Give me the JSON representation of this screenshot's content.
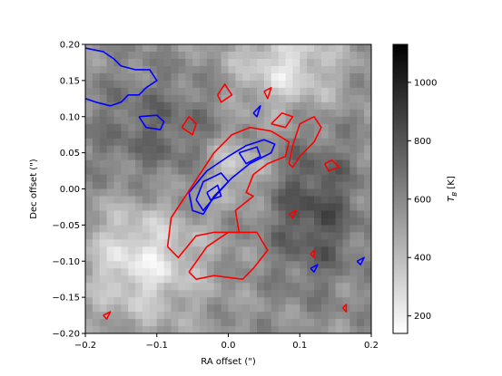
{
  "chart_data": {
    "type": "heatmap",
    "xlabel": "RA offset (\")",
    "ylabel": "Dec offset (\")",
    "xlim": [
      -0.2,
      0.2
    ],
    "ylim": [
      -0.2,
      0.2
    ],
    "xticks": [
      "−0.2",
      "−0.1",
      "0.0",
      "0.1",
      "0.2"
    ],
    "yticks": [
      "0.20",
      "0.15",
      "0.10",
      "0.05",
      "0.00",
      "−0.05",
      "−0.10",
      "−0.15",
      "−0.20"
    ],
    "xtick_values": [
      -0.2,
      -0.1,
      0.0,
      0.1,
      0.2
    ],
    "ytick_values": [
      0.2,
      0.15,
      0.1,
      0.05,
      0.0,
      -0.05,
      -0.1,
      -0.15,
      -0.2
    ],
    "colorbar": {
      "label": "T_B [K]",
      "label_main": "T",
      "label_sub": "B",
      "label_unit": " [K]",
      "range": [
        140,
        1130
      ],
      "ticks": [
        "1000",
        "800",
        "600",
        "400",
        "200"
      ],
      "tick_values": [
        1000,
        800,
        600,
        400,
        200
      ],
      "colormap": "gray_r"
    },
    "contour_colors": {
      "blue": "#0000ff",
      "red": "#ff0000"
    },
    "blue_contours": [
      [
        [
          -0.2,
          0.195
        ],
        [
          -0.175,
          0.19
        ],
        [
          -0.16,
          0.18
        ],
        [
          -0.15,
          0.17
        ],
        [
          -0.13,
          0.165
        ],
        [
          -0.11,
          0.165
        ],
        [
          -0.1,
          0.15
        ],
        [
          -0.115,
          0.14
        ],
        [
          -0.125,
          0.13
        ],
        [
          -0.14,
          0.13
        ],
        [
          -0.15,
          0.12
        ],
        [
          -0.165,
          0.115
        ],
        [
          -0.185,
          0.12
        ],
        [
          -0.2,
          0.125
        ]
      ],
      [
        [
          -0.125,
          0.1
        ],
        [
          -0.115,
          0.085
        ],
        [
          -0.095,
          0.082
        ],
        [
          -0.09,
          0.093
        ],
        [
          -0.1,
          0.102
        ],
        [
          -0.125,
          0.1
        ]
      ],
      [
        [
          -0.055,
          -0.005
        ],
        [
          -0.03,
          0.025
        ],
        [
          0.0,
          0.045
        ],
        [
          0.025,
          0.06
        ],
        [
          0.05,
          0.068
        ],
        [
          0.065,
          0.062
        ],
        [
          0.06,
          0.05
        ],
        [
          0.03,
          0.035
        ],
        [
          0.005,
          0.015
        ],
        [
          -0.02,
          -0.01
        ],
        [
          -0.035,
          -0.035
        ],
        [
          -0.05,
          -0.03
        ],
        [
          -0.055,
          -0.005
        ]
      ],
      [
        [
          -0.045,
          -0.015
        ],
        [
          -0.035,
          0.01
        ],
        [
          -0.01,
          0.022
        ],
        [
          0.0,
          0.01
        ],
        [
          -0.02,
          -0.012
        ],
        [
          -0.035,
          -0.03
        ],
        [
          -0.045,
          -0.015
        ]
      ],
      [
        [
          0.015,
          0.05
        ],
        [
          0.04,
          0.058
        ],
        [
          0.045,
          0.045
        ],
        [
          0.025,
          0.035
        ],
        [
          0.015,
          0.05
        ]
      ],
      [
        [
          -0.03,
          -0.005
        ],
        [
          -0.015,
          0.005
        ],
        [
          -0.01,
          -0.01
        ],
        [
          -0.025,
          -0.015
        ],
        [
          -0.03,
          -0.005
        ]
      ],
      [
        [
          0.035,
          0.105
        ],
        [
          0.045,
          0.115
        ],
        [
          0.04,
          0.1
        ],
        [
          0.035,
          0.105
        ]
      ],
      [
        [
          0.115,
          -0.11
        ],
        [
          0.125,
          -0.105
        ],
        [
          0.12,
          -0.115
        ],
        [
          0.115,
          -0.11
        ]
      ],
      [
        [
          0.18,
          -0.1
        ],
        [
          0.19,
          -0.095
        ],
        [
          0.185,
          -0.105
        ],
        [
          0.18,
          -0.1
        ]
      ]
    ],
    "red_contours": [
      [
        [
          -0.085,
          -0.08
        ],
        [
          -0.08,
          -0.04
        ],
        [
          -0.06,
          -0.01
        ],
        [
          -0.04,
          0.02
        ],
        [
          -0.02,
          0.05
        ],
        [
          0.005,
          0.075
        ],
        [
          0.03,
          0.085
        ],
        [
          0.06,
          0.08
        ],
        [
          0.085,
          0.065
        ],
        [
          0.08,
          0.045
        ],
        [
          0.055,
          0.035
        ],
        [
          0.035,
          0.02
        ],
        [
          0.025,
          -0.005
        ],
        [
          0.035,
          -0.01
        ],
        [
          0.01,
          -0.03
        ],
        [
          0.015,
          -0.06
        ],
        [
          -0.02,
          -0.06
        ],
        [
          -0.045,
          -0.065
        ],
        [
          -0.07,
          -0.095
        ],
        [
          -0.085,
          -0.08
        ]
      ],
      [
        [
          -0.055,
          -0.115
        ],
        [
          -0.03,
          -0.08
        ],
        [
          0.0,
          -0.06
        ],
        [
          0.04,
          -0.06
        ],
        [
          0.055,
          -0.085
        ],
        [
          0.035,
          -0.11
        ],
        [
          0.02,
          -0.125
        ],
        [
          -0.02,
          -0.12
        ],
        [
          -0.045,
          -0.125
        ],
        [
          -0.055,
          -0.115
        ]
      ],
      [
        [
          0.085,
          0.035
        ],
        [
          0.09,
          0.06
        ],
        [
          0.1,
          0.09
        ],
        [
          0.12,
          0.1
        ],
        [
          0.13,
          0.085
        ],
        [
          0.12,
          0.065
        ],
        [
          0.1,
          0.045
        ],
        [
          0.09,
          0.03
        ],
        [
          0.085,
          0.035
        ]
      ],
      [
        [
          0.06,
          0.09
        ],
        [
          0.075,
          0.105
        ],
        [
          0.09,
          0.1
        ],
        [
          0.08,
          0.085
        ],
        [
          0.06,
          0.09
        ]
      ],
      [
        [
          -0.065,
          0.085
        ],
        [
          -0.055,
          0.1
        ],
        [
          -0.045,
          0.09
        ],
        [
          -0.05,
          0.075
        ],
        [
          -0.065,
          0.085
        ]
      ],
      [
        [
          -0.015,
          0.13
        ],
        [
          -0.005,
          0.145
        ],
        [
          0.005,
          0.13
        ],
        [
          -0.01,
          0.12
        ],
        [
          -0.015,
          0.13
        ]
      ],
      [
        [
          0.05,
          0.135
        ],
        [
          0.06,
          0.14
        ],
        [
          0.055,
          0.125
        ],
        [
          0.05,
          0.135
        ]
      ],
      [
        [
          0.135,
          0.035
        ],
        [
          0.145,
          0.04
        ],
        [
          0.155,
          0.03
        ],
        [
          0.14,
          0.025
        ],
        [
          0.135,
          0.035
        ]
      ],
      [
        [
          0.085,
          -0.035
        ],
        [
          0.095,
          -0.03
        ],
        [
          0.09,
          -0.04
        ],
        [
          0.085,
          -0.035
        ]
      ],
      [
        [
          -0.175,
          -0.175
        ],
        [
          -0.165,
          -0.17
        ],
        [
          -0.17,
          -0.18
        ],
        [
          -0.175,
          -0.175
        ]
      ],
      [
        [
          0.115,
          -0.09
        ],
        [
          0.12,
          -0.085
        ],
        [
          0.12,
          -0.095
        ],
        [
          0.115,
          -0.09
        ]
      ],
      [
        [
          0.16,
          -0.165
        ],
        [
          0.165,
          -0.16
        ],
        [
          0.165,
          -0.17
        ],
        [
          0.16,
          -0.165
        ]
      ]
    ]
  }
}
